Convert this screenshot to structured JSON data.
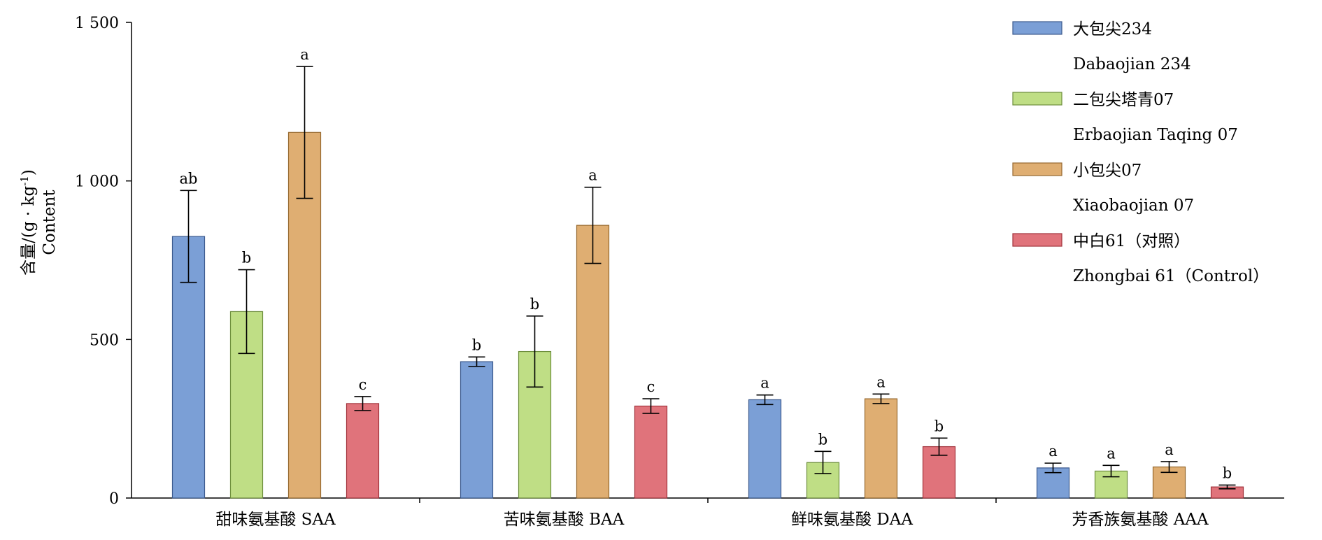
{
  "chart_data": {
    "type": "bar",
    "ylabel_lines": [
      "含量/(g · kg",
      "Content"
    ],
    "ylabel_superscript": "-1",
    "ylabel_close": ")",
    "ylim": [
      0,
      1500
    ],
    "yticks": [
      0,
      500,
      1000,
      1500
    ],
    "ytick_labels": [
      "0",
      "500",
      "1 000",
      "1 500"
    ],
    "categories": [
      "甜味氨基酸 SAA",
      "苦味氨基酸 BAA",
      "鲜味氨基酸 DAA",
      "芳香族氨基酸 AAA"
    ],
    "legend_position": "top-right",
    "series": [
      {
        "name": "大包尖234",
        "name_en": "Dabaojian 234",
        "color": "#7b9fd6",
        "stroke": "#3c5a8e",
        "values": [
          825,
          430,
          310,
          95
        ],
        "errors": [
          145,
          15,
          15,
          15
        ],
        "significance": [
          "ab",
          "b",
          "a",
          "a"
        ]
      },
      {
        "name": "二包尖塔青07",
        "name_en": "Erbaojian Taqing 07",
        "color": "#bfde85",
        "stroke": "#6d8e3c",
        "values": [
          588,
          462,
          112,
          85
        ],
        "errors": [
          132,
          112,
          35,
          18
        ],
        "significance": [
          "b",
          "b",
          "b",
          "a"
        ]
      },
      {
        "name": "小包尖07",
        "name_en": "Xiaobaojian 07",
        "color": "#dfae72",
        "stroke": "#96692f",
        "values": [
          1153,
          860,
          313,
          98
        ],
        "errors": [
          208,
          120,
          15,
          17
        ],
        "significance": [
          "a",
          "a",
          "a",
          "a"
        ]
      },
      {
        "name": "中白61（对照）",
        "name_en": "Zhongbai 61（Control）",
        "color": "#e0737b",
        "stroke": "#a2343c",
        "values": [
          298,
          290,
          162,
          35
        ],
        "errors": [
          22,
          23,
          27,
          6
        ],
        "significance": [
          "c",
          "c",
          "b",
          "b"
        ]
      }
    ]
  }
}
